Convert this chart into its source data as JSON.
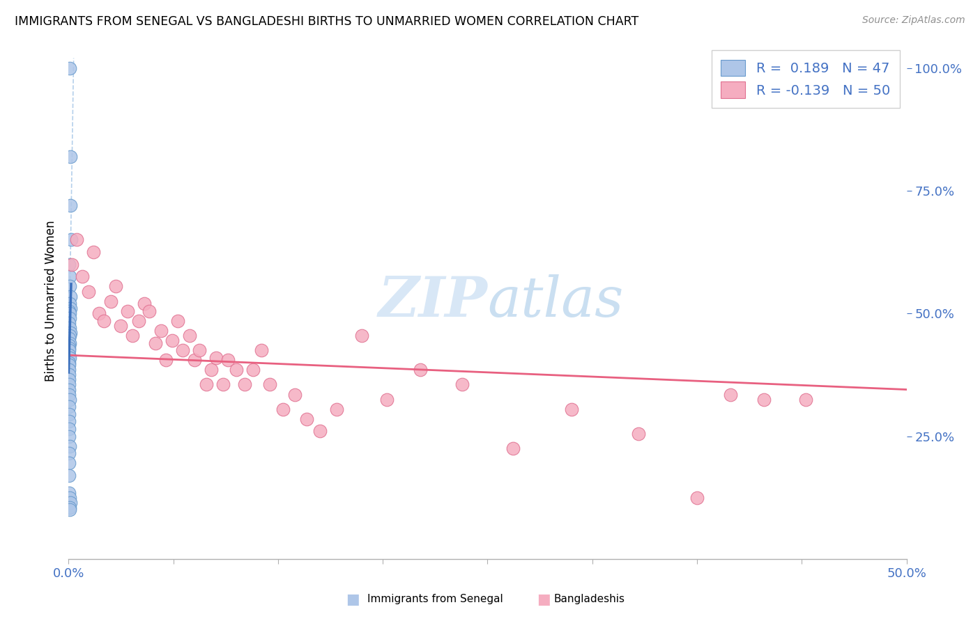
{
  "title": "IMMIGRANTS FROM SENEGAL VS BANGLADESHI BIRTHS TO UNMARRIED WOMEN CORRELATION CHART",
  "source": "Source: ZipAtlas.com",
  "ylabel": "Births to Unmarried Women",
  "legend1_label": "R =  0.189   N = 47",
  "legend2_label": "R = -0.139   N = 50",
  "blue_scatter_color": "#aec6e8",
  "blue_edge_color": "#6699cc",
  "pink_scatter_color": "#f5adc0",
  "pink_edge_color": "#e07090",
  "blue_line_color": "#3a6fbc",
  "pink_line_color": "#e86080",
  "dash_line_color": "#a8c8e8",
  "axis_label_color": "#4472c4",
  "grid_color": "#d8d8d8",
  "watermark_color": "#c8ddf0",
  "right_ytick_vals": [
    0.25,
    0.5,
    0.75,
    1.0
  ],
  "right_ytick_labels": [
    "25.0%",
    "50.0%",
    "75.0%",
    "100.0%"
  ],
  "xlim": [
    0.0,
    0.5
  ],
  "ylim": [
    0.0,
    1.05
  ],
  "senegal_x": [
    0.0005,
    0.001,
    0.001,
    0.0015,
    0.0003,
    0.0007,
    0.0005,
    0.001,
    0.0008,
    0.0012,
    0.0003,
    0.0005,
    0.0007,
    0.0002,
    0.0008,
    0.001,
    0.0005,
    0.0003,
    0.0006,
    0.0004,
    0.0002,
    0.0004,
    0.0003,
    0.0005,
    0.0002,
    0.0003,
    0.0004,
    0.0003,
    0.0002,
    0.0004,
    0.0003,
    0.0002,
    0.0005,
    0.0002,
    0.0003,
    0.0002,
    0.0004,
    0.0003,
    0.0005,
    0.0003,
    0.0002,
    0.0003,
    0.0004,
    0.0005,
    0.001,
    0.0008,
    0.0006
  ],
  "senegal_y": [
    1.0,
    0.82,
    0.72,
    0.65,
    0.6,
    0.575,
    0.555,
    0.535,
    0.52,
    0.51,
    0.505,
    0.5,
    0.49,
    0.48,
    0.47,
    0.46,
    0.455,
    0.45,
    0.44,
    0.435,
    0.43,
    0.425,
    0.415,
    0.41,
    0.4,
    0.395,
    0.385,
    0.375,
    0.365,
    0.355,
    0.345,
    0.335,
    0.325,
    0.31,
    0.295,
    0.28,
    0.265,
    0.25,
    0.23,
    0.215,
    0.195,
    0.17,
    0.135,
    0.125,
    0.115,
    0.105,
    0.1
  ],
  "bangladeshi_x": [
    0.002,
    0.005,
    0.008,
    0.012,
    0.015,
    0.018,
    0.021,
    0.025,
    0.028,
    0.031,
    0.035,
    0.038,
    0.042,
    0.045,
    0.048,
    0.052,
    0.055,
    0.058,
    0.062,
    0.065,
    0.068,
    0.072,
    0.075,
    0.078,
    0.082,
    0.085,
    0.088,
    0.092,
    0.095,
    0.1,
    0.105,
    0.11,
    0.115,
    0.12,
    0.128,
    0.135,
    0.142,
    0.15,
    0.16,
    0.175,
    0.19,
    0.21,
    0.235,
    0.265,
    0.3,
    0.34,
    0.375,
    0.395,
    0.415,
    0.44
  ],
  "bangladeshi_y": [
    0.6,
    0.65,
    0.575,
    0.545,
    0.625,
    0.5,
    0.485,
    0.525,
    0.555,
    0.475,
    0.505,
    0.455,
    0.485,
    0.52,
    0.505,
    0.44,
    0.465,
    0.405,
    0.445,
    0.485,
    0.425,
    0.455,
    0.405,
    0.425,
    0.355,
    0.385,
    0.41,
    0.355,
    0.405,
    0.385,
    0.355,
    0.385,
    0.425,
    0.355,
    0.305,
    0.335,
    0.285,
    0.26,
    0.305,
    0.455,
    0.325,
    0.385,
    0.355,
    0.225,
    0.305,
    0.255,
    0.125,
    0.335,
    0.325,
    0.325
  ],
  "pink_line_x": [
    0.0,
    0.5
  ],
  "pink_line_y": [
    0.415,
    0.345
  ],
  "blue_line_x": [
    0.0,
    0.0015
  ],
  "blue_line_y": [
    0.38,
    0.56
  ],
  "dash_line_x": [
    0.0,
    0.003
  ],
  "dash_line_y": [
    0.38,
    1.02
  ]
}
